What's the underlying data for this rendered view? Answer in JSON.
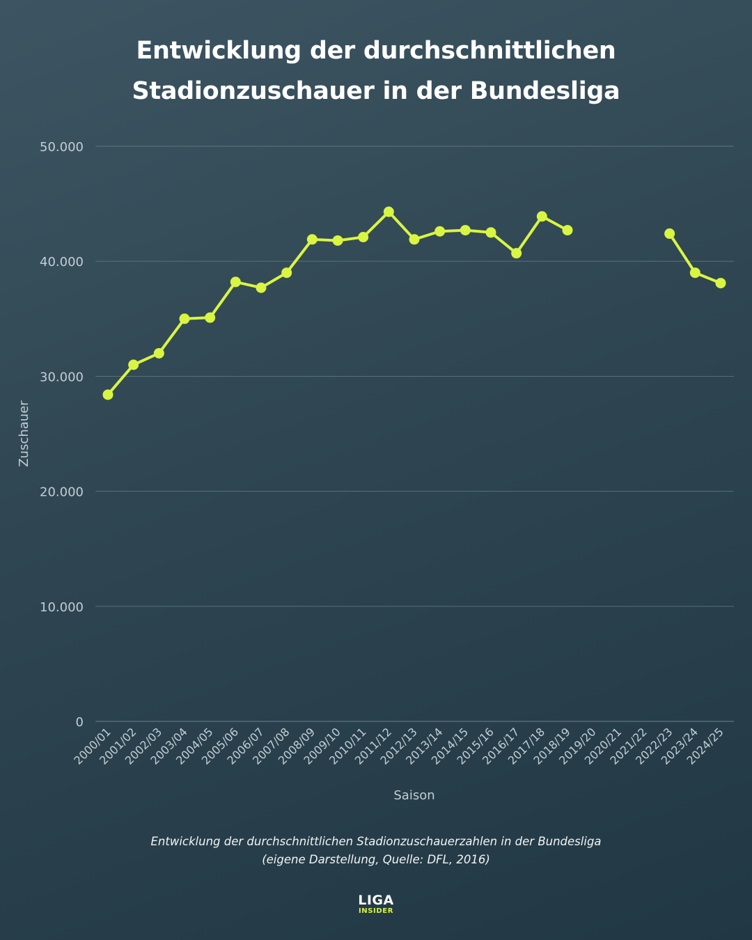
{
  "title": {
    "line1": "Entwicklung der durchschnittlichen",
    "line2": "Stadionzuschauer in der Bundesliga"
  },
  "caption": {
    "line1": "Entwicklung der durchschnittlichen Stadionzuschauerzahlen in der Bundesliga",
    "line2": "(eigene Darstellung, Quelle: DFL, 2016)"
  },
  "logo": {
    "line1": "LIGA",
    "line2": "INSIDER"
  },
  "colors": {
    "line": "#d9f542",
    "grid": "#5f7581",
    "axis_text": "#c3ced4",
    "title": "#ffffff"
  },
  "chart_data": {
    "type": "line",
    "xlabel": "Saison",
    "ylabel": "Zuschauer",
    "ylim": [
      0,
      50000
    ],
    "yticks": [
      0,
      10000,
      20000,
      30000,
      40000,
      50000
    ],
    "ytick_labels": [
      "0",
      "10.000",
      "20.000",
      "30.000",
      "40.000",
      "50.000"
    ],
    "grid": true,
    "categories": [
      "2000/01",
      "2001/02",
      "2002/03",
      "2003/04",
      "2004/05",
      "2005/06",
      "2006/07",
      "2007/08",
      "2008/09",
      "2009/10",
      "2010/11",
      "2011/12",
      "2012/13",
      "2013/14",
      "2014/15",
      "2015/16",
      "2016/17",
      "2017/18",
      "2018/19",
      "2019/20",
      "2020/21",
      "2021/22",
      "2022/23",
      "2023/24",
      "2024/25"
    ],
    "values": [
      28400,
      31000,
      32000,
      35000,
      35100,
      38200,
      37700,
      39000,
      41900,
      41800,
      42100,
      44300,
      41900,
      42600,
      42700,
      42500,
      40700,
      43900,
      42700,
      null,
      null,
      null,
      42400,
      39000,
      38100
    ]
  }
}
